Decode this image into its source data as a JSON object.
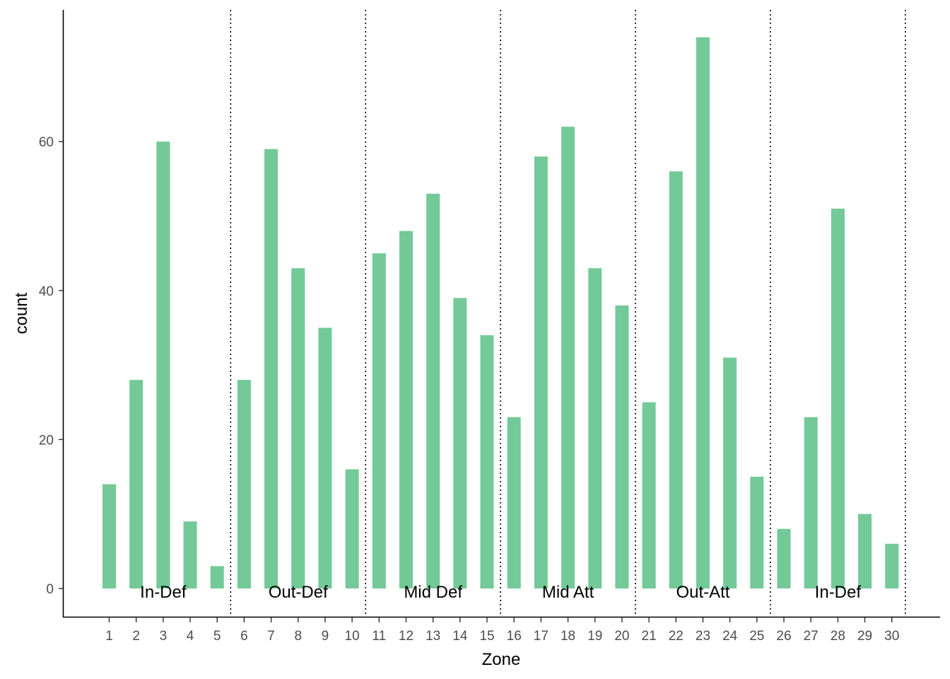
{
  "chart_data": {
    "type": "bar",
    "xlabel": "Zone",
    "ylabel": "count",
    "categories": [
      "1",
      "2",
      "3",
      "4",
      "5",
      "6",
      "7",
      "8",
      "9",
      "10",
      "11",
      "12",
      "13",
      "14",
      "15",
      "16",
      "17",
      "18",
      "19",
      "20",
      "21",
      "22",
      "23",
      "24",
      "25",
      "26",
      "27",
      "28",
      "29",
      "30"
    ],
    "values": [
      14,
      28,
      60,
      9,
      3,
      28,
      59,
      43,
      35,
      16,
      45,
      48,
      53,
      39,
      34,
      23,
      58,
      62,
      43,
      38,
      25,
      56,
      74,
      31,
      15,
      8,
      23,
      51,
      10,
      6
    ],
    "yticks": [
      0,
      20,
      40,
      60
    ],
    "ylim": [
      -4,
      78
    ],
    "bar_color": "#73c997",
    "grid": false,
    "zone_dividers_after": [
      5,
      10,
      15,
      20,
      25,
      30
    ],
    "zone_groups": [
      {
        "label": "In-Def",
        "from": 1,
        "to": 5
      },
      {
        "label": "Out-Def",
        "from": 6,
        "to": 10
      },
      {
        "label": "Mid Def",
        "from": 11,
        "to": 15
      },
      {
        "label": "Mid Att",
        "from": 16,
        "to": 20
      },
      {
        "label": "Out-Att",
        "from": 21,
        "to": 25
      },
      {
        "label": "In-Def",
        "from": 26,
        "to": 30
      }
    ]
  }
}
